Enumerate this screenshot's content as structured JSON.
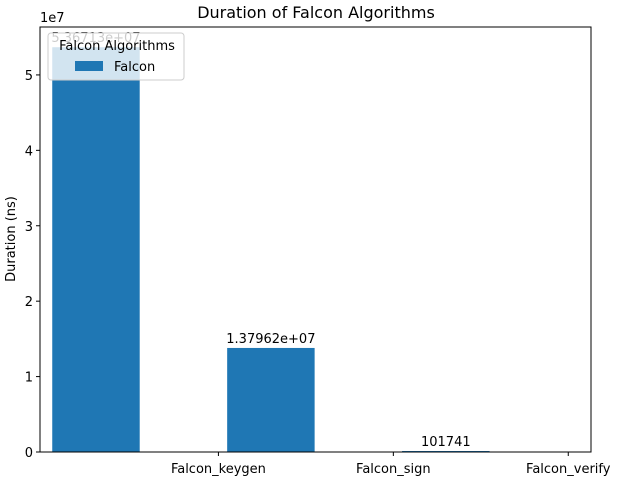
{
  "chart_data": {
    "type": "bar",
    "title": "Duration of Falcon Algorithms",
    "ylabel": "Duration (ns)",
    "xlabel": "",
    "y_scale_label": "1e7",
    "categories": [
      "Falcon_keygen",
      "Falcon_sign",
      "Falcon_verify"
    ],
    "series": [
      {
        "name": "Falcon",
        "values": [
          53671300,
          13796200,
          101741
        ],
        "labels": [
          "5.36713e+07",
          "1.37962e+07",
          "101741"
        ],
        "color": "#1f77b4"
      }
    ],
    "ylim": [
      0,
      56354865
    ],
    "yticks": [
      0,
      1,
      2,
      3,
      4,
      5
    ],
    "legend": {
      "title": "Falcon Algorithms",
      "placement": "top-left"
    },
    "grid": false
  }
}
